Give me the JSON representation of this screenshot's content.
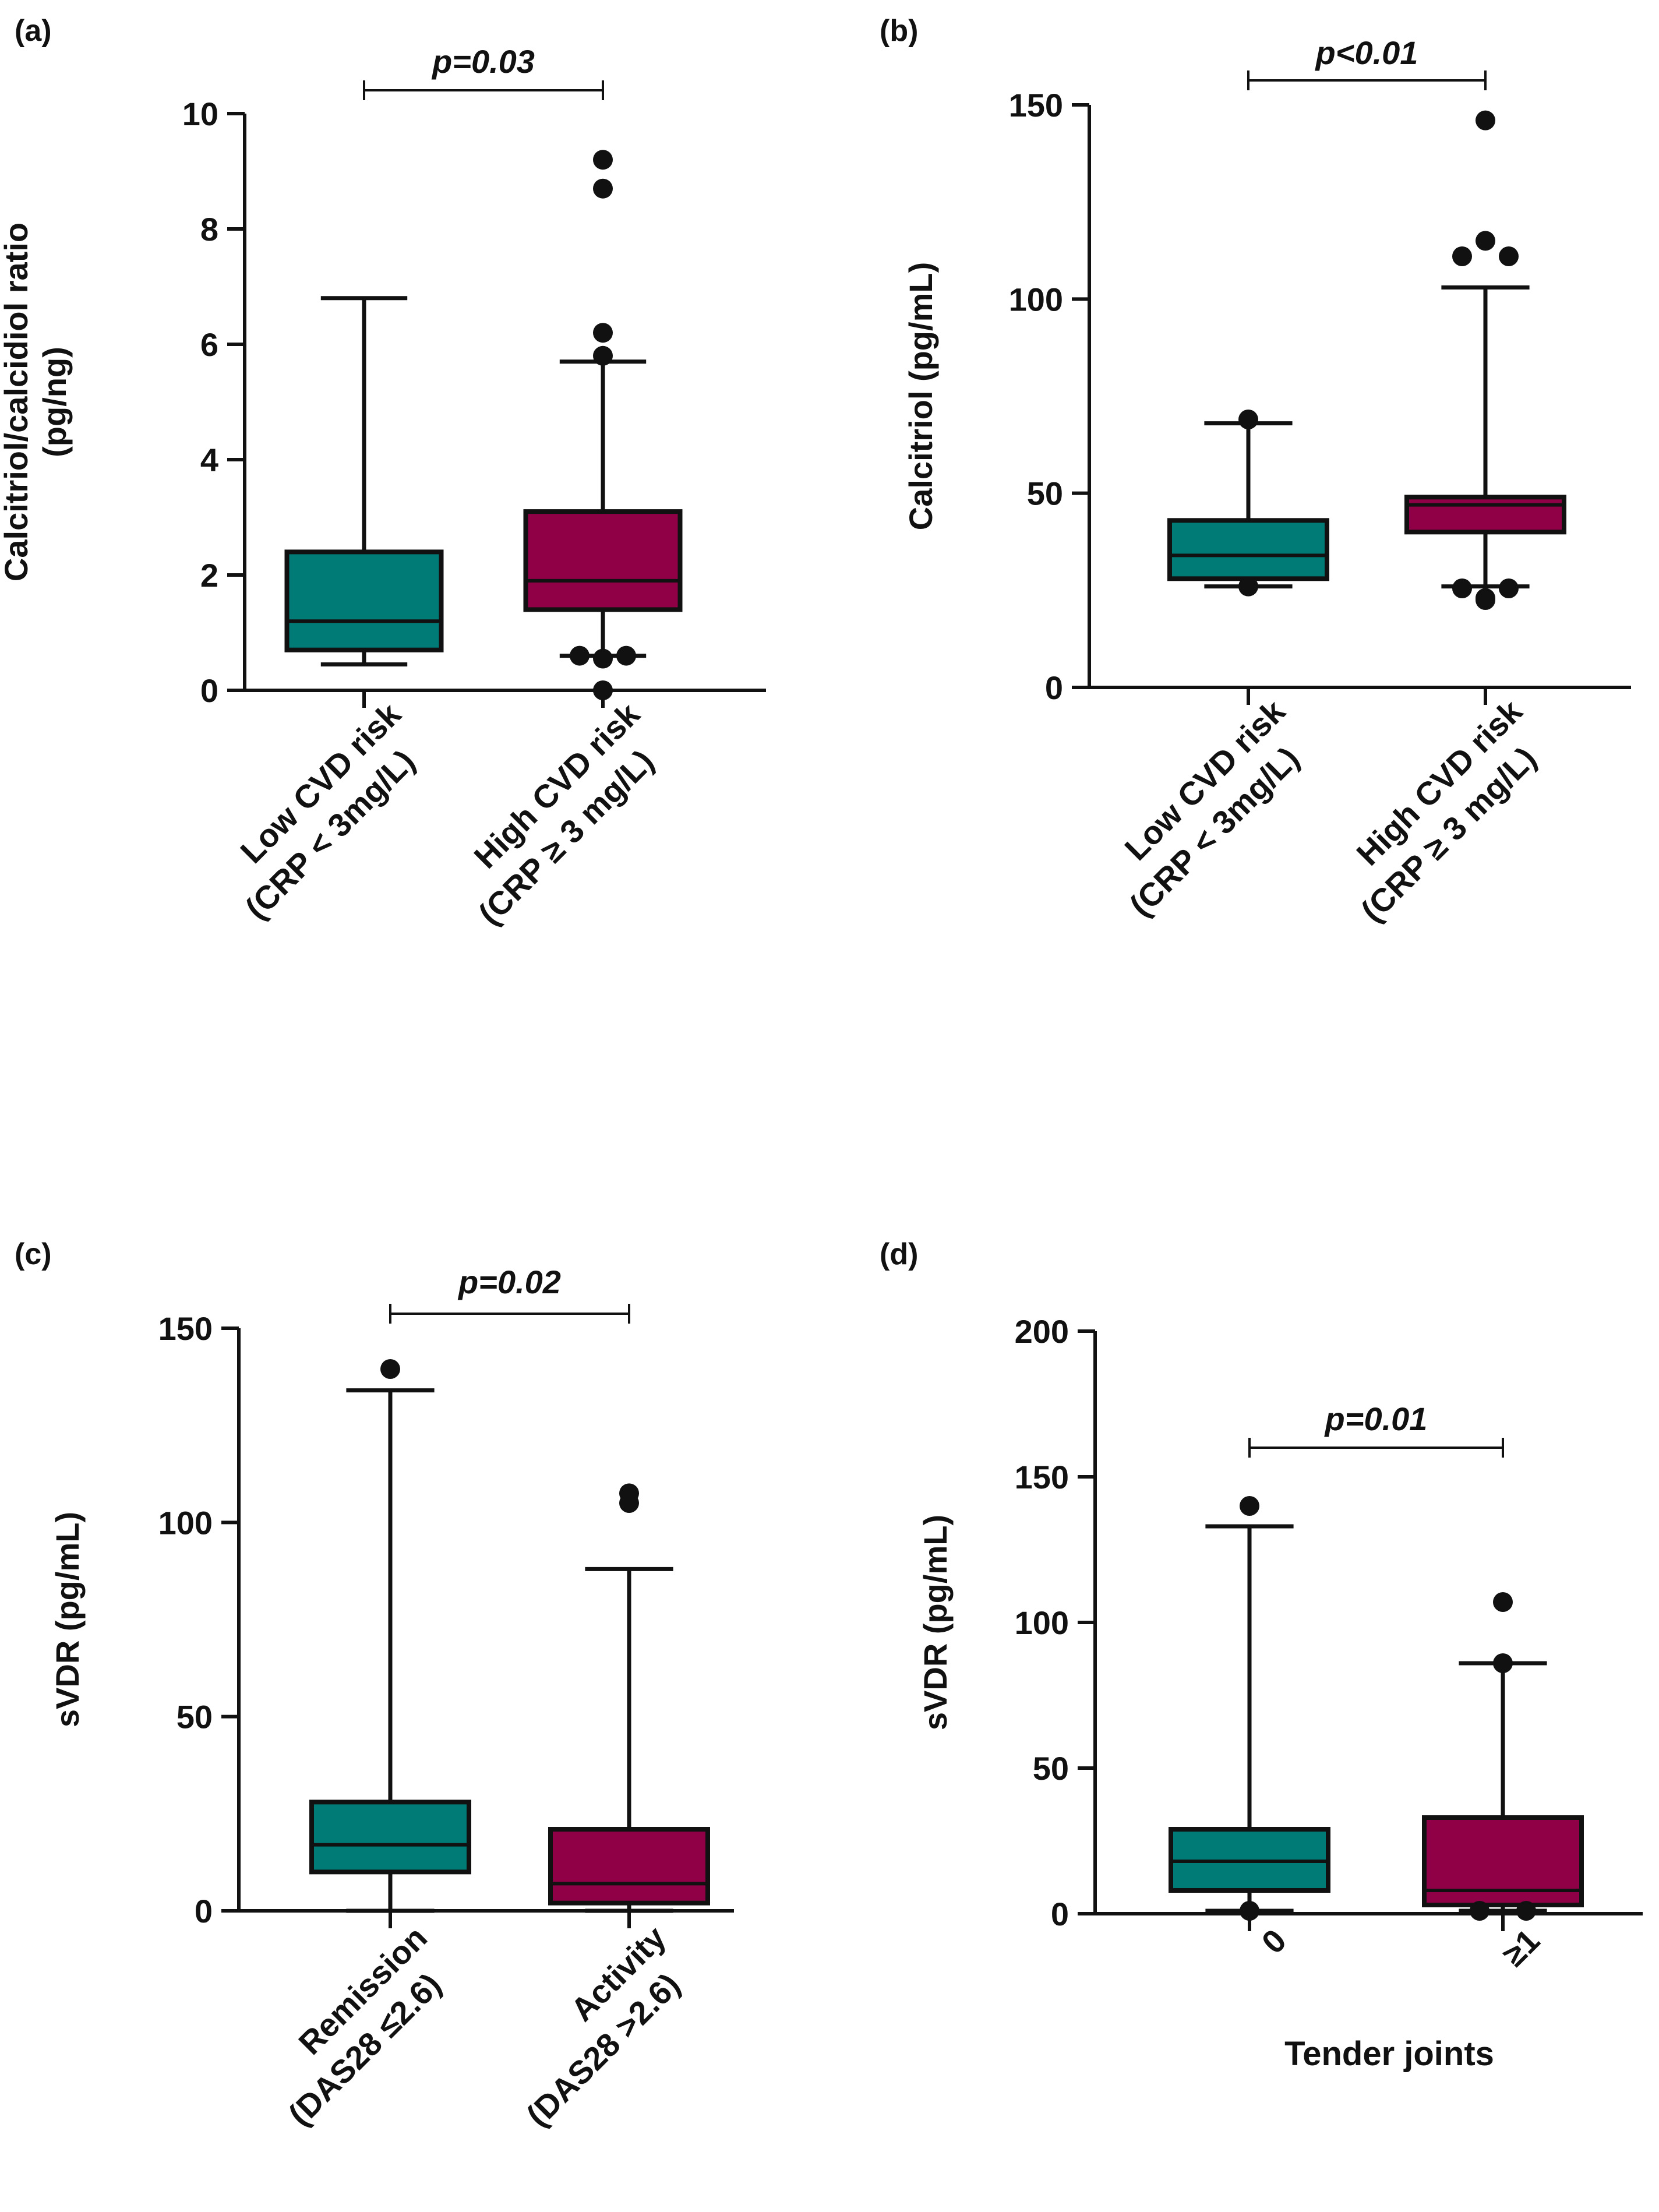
{
  "colors": {
    "low": "#007b76",
    "high": "#8f0047",
    "ink": "#111111"
  },
  "charts": [
    {
      "panel_label": "(a)",
      "type": "box",
      "ylabel_lines": [
        "Calcitriol/calcidiol ratio",
        "(pg/ng)"
      ],
      "ylim": [
        0,
        10
      ],
      "yticks": [
        0,
        2,
        4,
        6,
        8,
        10
      ],
      "ytick_labels": [
        "0",
        "2",
        "4",
        "6",
        "8",
        "10"
      ],
      "xlabel": "",
      "p_value": "p=0.03",
      "groups": [
        {
          "name_lines": [
            "Low CVD risk",
            "(CRP < 3mg/L)"
          ],
          "color_key": "low",
          "whisker_low": 0.45,
          "q1": 0.7,
          "median": 1.2,
          "q3": 2.4,
          "whisker_high": 6.8,
          "outliers": []
        },
        {
          "name_lines": [
            "High CVD risk",
            "(CRP ≥ 3 mg/L)"
          ],
          "color_key": "high",
          "whisker_low": 0.6,
          "q1": 1.4,
          "median": 1.9,
          "q3": 3.1,
          "whisker_high": 5.7,
          "outliers": [
            9.2,
            8.7,
            6.2,
            5.8,
            0.6,
            0.6,
            0.55,
            0.0
          ]
        }
      ]
    },
    {
      "panel_label": "(b)",
      "type": "box",
      "ylabel_lines": [
        "Calcitriol (pg/mL)"
      ],
      "ylim": [
        0,
        150
      ],
      "yticks": [
        0,
        50,
        100,
        150
      ],
      "ytick_labels": [
        "0",
        "50",
        "100",
        "150"
      ],
      "xlabel": "",
      "p_value": "p<0.01",
      "groups": [
        {
          "name_lines": [
            "Low CVD risk",
            "(CRP < 3mg/L)"
          ],
          "color_key": "low",
          "whisker_low": 26,
          "q1": 28,
          "median": 34,
          "q3": 43,
          "whisker_high": 68,
          "outliers": [
            69,
            26
          ]
        },
        {
          "name_lines": [
            "High CVD risk",
            "(CRP ≥ 3 mg/L)"
          ],
          "color_key": "high",
          "whisker_low": 26,
          "q1": 40,
          "median": 47,
          "q3": 49,
          "whisker_high": 103,
          "outliers": [
            146,
            115,
            111,
            111,
            25.5,
            25.5,
            23,
            22.5
          ]
        }
      ]
    },
    {
      "panel_label": "(c)",
      "type": "box",
      "ylabel_lines": [
        "sVDR  (pg/mL)"
      ],
      "ylim": [
        0,
        150
      ],
      "yticks": [
        0,
        50,
        100,
        150
      ],
      "ytick_labels": [
        "0",
        "50",
        "100",
        "150"
      ],
      "xlabel": "",
      "p_value": "p=0.02",
      "groups": [
        {
          "name_lines": [
            "Remission",
            "(DAS28 ≤2.6)"
          ],
          "color_key": "low",
          "whisker_low": 0,
          "q1": 10,
          "median": 17,
          "q3": 28,
          "whisker_high": 134,
          "outliers": [
            139.5
          ]
        },
        {
          "name_lines": [
            "Activity",
            "(DAS28 >2.6)"
          ],
          "color_key": "high",
          "whisker_low": 0,
          "q1": 2,
          "median": 7,
          "q3": 21,
          "whisker_high": 88,
          "outliers": [
            107.5,
            105
          ]
        }
      ]
    },
    {
      "panel_label": "(d)",
      "type": "box",
      "ylabel_lines": [
        "sVDR  (pg/mL)"
      ],
      "ylim": [
        0,
        200
      ],
      "yticks": [
        0,
        50,
        100,
        150,
        200
      ],
      "ytick_labels": [
        "0",
        "50",
        "100",
        "150",
        "200"
      ],
      "xlabel": "Tender joints",
      "p_value": "p=0.01",
      "groups": [
        {
          "name_lines": [
            "0"
          ],
          "color_key": "low",
          "whisker_low": 1,
          "q1": 8,
          "median": 18,
          "q3": 29,
          "whisker_high": 133,
          "outliers": [
            140,
            1
          ]
        },
        {
          "name_lines": [
            "≥1"
          ],
          "color_key": "high",
          "whisker_low": 1,
          "q1": 3,
          "median": 8,
          "q3": 33,
          "whisker_high": 86,
          "outliers": [
            107,
            86,
            1,
            1
          ]
        }
      ]
    }
  ]
}
